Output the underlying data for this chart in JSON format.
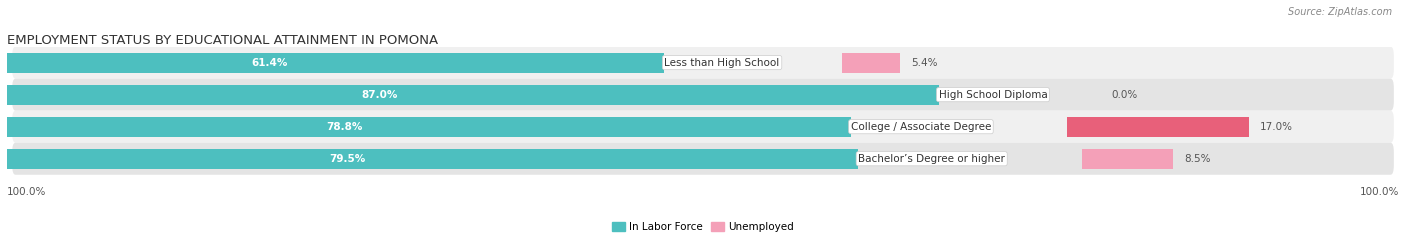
{
  "title": "EMPLOYMENT STATUS BY EDUCATIONAL ATTAINMENT IN POMONA",
  "source": "Source: ZipAtlas.com",
  "categories": [
    "Less than High School",
    "High School Diploma",
    "College / Associate Degree",
    "Bachelor’s Degree or higher"
  ],
  "labor_force": [
    61.4,
    87.0,
    78.8,
    79.5
  ],
  "unemployed": [
    5.4,
    0.0,
    17.0,
    8.5
  ],
  "labor_force_color": "#4DBFBF",
  "unemployed_color_light": "#F4A0B8",
  "unemployed_color_dark": "#E8607A",
  "unemployed_colors": [
    "#F4A0B8",
    "#F4A0B8",
    "#E8607A",
    "#F4A0B8"
  ],
  "row_bg_colors": [
    "#F0F0F0",
    "#E4E4E4"
  ],
  "axis_label_left": "100.0%",
  "axis_label_right": "100.0%",
  "legend_labor": "In Labor Force",
  "legend_unemployed": "Unemployed",
  "title_fontsize": 9.5,
  "source_fontsize": 7,
  "bar_label_fontsize": 7.5,
  "category_fontsize": 7.5,
  "legend_fontsize": 7.5,
  "axis_fontsize": 7.5,
  "bar_height": 0.62,
  "x_max": 100.0,
  "label_box_color": "#FFFFFF",
  "lf_text_color": "#FFFFFF",
  "pct_text_color": "#555555"
}
